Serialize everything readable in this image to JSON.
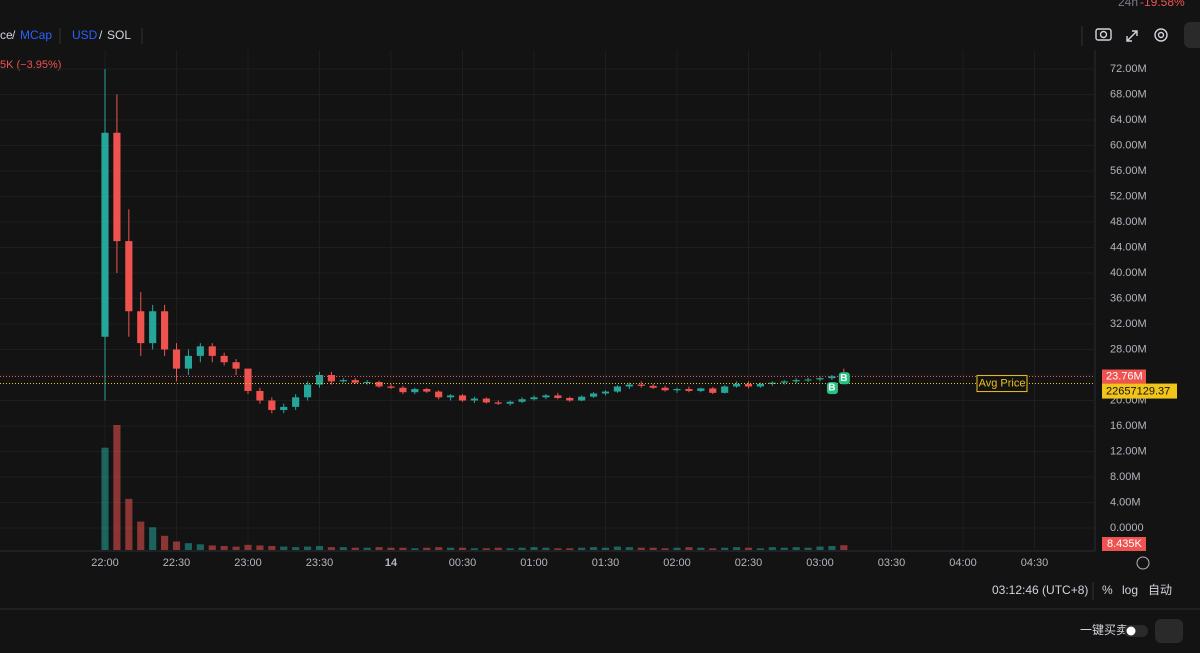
{
  "toolbar": {
    "price": "ce",
    "separator": "/",
    "mcap": "MCap",
    "usd": "USD",
    "sol": "SOL",
    "change_period": "24h",
    "change": "-19.58%"
  },
  "legend_text": "5K (−3.95%)",
  "chart_data": {
    "type": "candlestick",
    "x": [
      "22:00",
      "22:05",
      "22:10",
      "22:15",
      "22:20",
      "22:25",
      "22:30",
      "22:35",
      "22:40",
      "22:45",
      "22:50",
      "22:55",
      "23:00",
      "23:05",
      "23:10",
      "23:15",
      "23:20",
      "23:25",
      "23:30",
      "23:35",
      "23:40",
      "23:45",
      "23:50",
      "23:55",
      "00:00",
      "00:05",
      "00:10",
      "00:15",
      "00:20",
      "00:25",
      "00:30",
      "00:35",
      "00:40",
      "00:45",
      "00:50",
      "00:55",
      "01:00",
      "01:05",
      "01:10",
      "01:15",
      "01:20",
      "01:25",
      "01:30",
      "01:35",
      "01:40",
      "01:45",
      "01:50",
      "01:55",
      "02:00",
      "02:05",
      "02:10",
      "02:15",
      "02:20",
      "02:25",
      "02:30",
      "02:35",
      "02:40",
      "02:45",
      "02:50",
      "02:55",
      "03:00",
      "03:05",
      "03:10"
    ],
    "open": [
      30,
      62,
      45,
      34,
      29,
      34,
      28,
      25,
      27,
      28.5,
      27,
      26,
      25,
      21.5,
      20,
      18.5,
      19,
      20.5,
      22.5,
      24,
      23,
      23.2,
      22.8,
      22.9,
      22.2,
      22,
      21.3,
      21.8,
      21.4,
      20.5,
      20.8,
      20,
      20.3,
      19.7,
      19.5,
      19.8,
      20.2,
      20.5,
      20.8,
      20.4,
      20,
      20.6,
      21.1,
      21.4,
      22.2,
      22.5,
      22.3,
      22,
      21.6,
      21.8,
      21.5,
      21.9,
      21.2,
      22.2,
      22.6,
      22.2,
      22.6,
      22.8,
      23,
      23.2,
      23.3,
      23.5,
      23.8
    ],
    "high": [
      72,
      68,
      50,
      37,
      35,
      35,
      29,
      28,
      29,
      29,
      27.5,
      26.5,
      25,
      22,
      20.5,
      19.5,
      21,
      23,
      24.5,
      24.5,
      23.5,
      23.5,
      23.2,
      23.1,
      22.6,
      22.3,
      22,
      22,
      21.6,
      21,
      21,
      20.6,
      20.5,
      20,
      20,
      20.5,
      20.8,
      21,
      21.2,
      20.6,
      20.8,
      21.3,
      21.6,
      22.4,
      22.8,
      23,
      22.6,
      22.3,
      22,
      22.2,
      22,
      22.1,
      22.4,
      23,
      23,
      22.8,
      23,
      23.2,
      23.5,
      23.6,
      23.8,
      24,
      25
    ],
    "low": [
      20,
      40,
      30,
      27,
      28,
      27,
      23,
      24,
      26,
      26,
      25.5,
      24,
      21,
      19.5,
      18,
      18,
      18.5,
      20,
      22,
      22.5,
      22.8,
      22.6,
      22.5,
      22,
      21.8,
      21,
      21,
      21.2,
      20.2,
      20,
      19.8,
      19.6,
      19.5,
      19.3,
      19.2,
      19.6,
      20,
      20.2,
      20.2,
      19.8,
      19.9,
      20.4,
      20.8,
      21.2,
      21.8,
      22,
      21.8,
      21.4,
      21.2,
      21.3,
      21.3,
      21,
      21.1,
      22,
      21.9,
      22,
      22.3,
      22.5,
      22.7,
      22.9,
      23,
      23.2,
      23.5
    ],
    "close": [
      62,
      45,
      34,
      29,
      34,
      28,
      25,
      27,
      28.5,
      27,
      26,
      25,
      21.5,
      20,
      18.5,
      19,
      20.5,
      22.5,
      24,
      23,
      23.2,
      22.8,
      22.9,
      22.2,
      22,
      21.3,
      21.8,
      21.4,
      20.5,
      20.8,
      20,
      20.3,
      19.7,
      19.5,
      19.8,
      20.2,
      20.5,
      20.8,
      20.4,
      20,
      20.6,
      21.1,
      21.4,
      22.2,
      22.5,
      22.3,
      22,
      21.6,
      21.8,
      21.5,
      21.9,
      21.2,
      22.2,
      22.6,
      22.2,
      22.6,
      22.8,
      23,
      23.2,
      23.3,
      23.5,
      23.8,
      23.76
    ],
    "volume": [
      180,
      220,
      90,
      50,
      40,
      25,
      15,
      12,
      10,
      8,
      7,
      6,
      9,
      8,
      7,
      6,
      5,
      6,
      7,
      5,
      5,
      4,
      4,
      5,
      4,
      4,
      3,
      4,
      5,
      4,
      4,
      3,
      3,
      4,
      3,
      4,
      5,
      4,
      3,
      3,
      4,
      5,
      4,
      6,
      5,
      4,
      4,
      3,
      4,
      5,
      4,
      3,
      4,
      5,
      4,
      3,
      5,
      4,
      5,
      4,
      6,
      7,
      8.435
    ],
    "volume_last_label": "8.435K",
    "up_color": "#26a69a",
    "down_color": "#ef5350",
    "ylim": [
      0,
      72
    ],
    "yticks": [
      {
        "value": 0,
        "label": "0.0000"
      },
      {
        "value": 4,
        "label": "4.00M"
      },
      {
        "value": 8,
        "label": "8.00M"
      },
      {
        "value": 12,
        "label": "12.00M"
      },
      {
        "value": 16,
        "label": "16.00M"
      },
      {
        "value": 20,
        "label": "20.00M"
      },
      {
        "value": 24,
        "label": "24.00M"
      },
      {
        "value": 28,
        "label": "28.00M"
      },
      {
        "value": 32,
        "label": "32.00M"
      },
      {
        "value": 36,
        "label": "36.00M"
      },
      {
        "value": 40,
        "label": "40.00M"
      },
      {
        "value": 44,
        "label": "44.00M"
      },
      {
        "value": 48,
        "label": "48.00M"
      },
      {
        "value": 52,
        "label": "52.00M"
      },
      {
        "value": 56,
        "label": "56.00M"
      },
      {
        "value": 60,
        "label": "60.00M"
      },
      {
        "value": 64,
        "label": "64.00M"
      },
      {
        "value": 68,
        "label": "68.00M"
      },
      {
        "value": 72,
        "label": "72.00M"
      }
    ],
    "xticks": [
      {
        "value": "22:00",
        "label": "22:00"
      },
      {
        "value": "22:30",
        "label": "22:30"
      },
      {
        "value": "23:00",
        "label": "23:00"
      },
      {
        "value": "23:30",
        "label": "23:30"
      },
      {
        "value": "00:00",
        "label": "14"
      },
      {
        "value": "00:30",
        "label": "00:30"
      },
      {
        "value": "01:00",
        "label": "01:00"
      },
      {
        "value": "01:30",
        "label": "01:30"
      },
      {
        "value": "02:00",
        "label": "02:00"
      },
      {
        "value": "02:30",
        "label": "02:30"
      },
      {
        "value": "03:00",
        "label": "03:00"
      },
      {
        "value": "03:30",
        "label": "03:30"
      },
      {
        "value": "04:00",
        "label": "04:00"
      },
      {
        "value": "04:30",
        "label": "04:30"
      }
    ],
    "last_price": {
      "value": 23.76,
      "label": "23.76M"
    },
    "avg_price": {
      "name": "Avg Price",
      "value": 22.65712937,
      "label": "22657129.37"
    },
    "markers": [
      {
        "x": "03:05",
        "text": "B"
      },
      {
        "x": "03:10",
        "text": "B"
      }
    ],
    "grid": true
  },
  "footer": {
    "clock": "03:12:46 (UTC+8)",
    "percent": "%",
    "log": "log",
    "auto": "自动",
    "quick_trade": "一键买卖"
  }
}
